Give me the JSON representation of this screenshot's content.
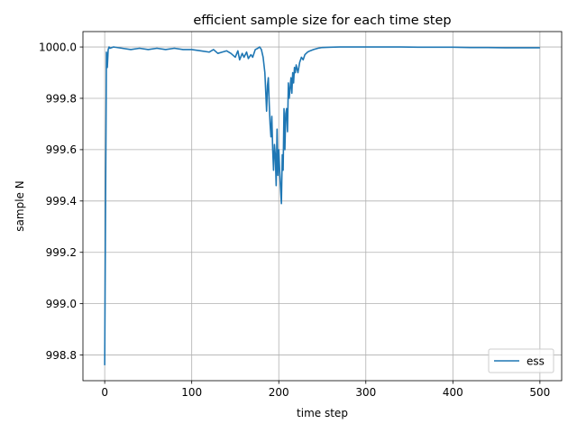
{
  "chart_data": {
    "type": "line",
    "title": "efficient sample size for each time step",
    "xlabel": "time step",
    "ylabel": "sample N",
    "xlim": [
      -25,
      525
    ],
    "ylim": [
      998.7,
      1000.06
    ],
    "xticks": [
      0,
      100,
      200,
      300,
      400,
      500
    ],
    "xtick_labels": [
      "0",
      "100",
      "200",
      "300",
      "400",
      "500"
    ],
    "yticks": [
      998.8,
      999.0,
      999.2,
      999.4,
      999.6,
      999.8,
      1000.0
    ],
    "ytick_labels": [
      "998.8",
      "999.0",
      "999.2",
      "999.4",
      "999.6",
      "999.8",
      "1000.0"
    ],
    "grid": true,
    "legend_position": "lower-right",
    "colors": {
      "series": "#1f77b4",
      "grid": "#b0b0b0"
    },
    "series": [
      {
        "name": "ess",
        "x": [
          0,
          1,
          2,
          3,
          4,
          5,
          6,
          10,
          20,
          30,
          40,
          50,
          60,
          70,
          80,
          90,
          100,
          110,
          120,
          125,
          130,
          135,
          140,
          145,
          150,
          153,
          155,
          158,
          160,
          163,
          165,
          168,
          170,
          173,
          176,
          178,
          180,
          182,
          184,
          186,
          187,
          188,
          189,
          190,
          191,
          192,
          193,
          194,
          195,
          196,
          197,
          198,
          199,
          200,
          201,
          202,
          203,
          204,
          205,
          206,
          207,
          208,
          209,
          210,
          211,
          212,
          213,
          214,
          215,
          216,
          217,
          218,
          219,
          220,
          222,
          224,
          226,
          228,
          230,
          233,
          236,
          240,
          245,
          250,
          260,
          270,
          280,
          290,
          300,
          320,
          340,
          360,
          380,
          400,
          420,
          440,
          460,
          480,
          500
        ],
        "values": [
          998.76,
          999.4,
          999.98,
          999.92,
          999.99,
          1000.0,
          999.995,
          1000.0,
          999.995,
          999.99,
          999.995,
          999.99,
          999.995,
          999.99,
          999.995,
          999.99,
          999.99,
          999.985,
          999.98,
          999.99,
          999.975,
          999.98,
          999.985,
          999.975,
          999.96,
          999.985,
          999.95,
          999.975,
          999.96,
          999.98,
          999.955,
          999.97,
          999.96,
          999.99,
          999.995,
          1000.0,
          999.99,
          999.96,
          999.9,
          999.75,
          999.85,
          999.88,
          999.78,
          999.7,
          999.65,
          999.73,
          999.6,
          999.52,
          999.62,
          999.58,
          999.46,
          999.68,
          999.5,
          999.6,
          999.52,
          999.45,
          999.39,
          999.58,
          999.52,
          999.76,
          999.6,
          999.74,
          999.76,
          999.67,
          999.86,
          999.8,
          999.84,
          999.88,
          999.82,
          999.9,
          999.86,
          999.92,
          999.9,
          999.93,
          999.9,
          999.94,
          999.96,
          999.95,
          999.97,
          999.98,
          999.985,
          999.99,
          999.995,
          999.998,
          999.999,
          1000.0,
          1000.0,
          1000.0,
          1000.0,
          1000.0,
          1000.0,
          999.999,
          999.999,
          999.999,
          999.998,
          999.998,
          999.997,
          999.997,
          999.997
        ]
      }
    ]
  }
}
